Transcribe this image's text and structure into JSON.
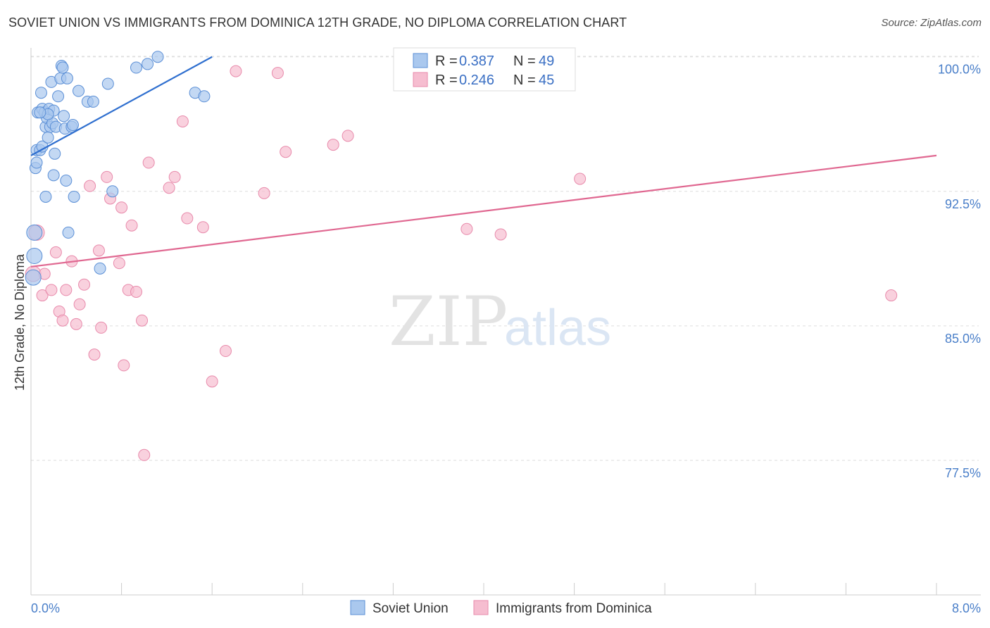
{
  "title": "SOVIET UNION VS IMMIGRANTS FROM DOMINICA 12TH GRADE, NO DIPLOMA CORRELATION CHART",
  "source": "Source: ZipAtlas.com",
  "watermark": {
    "zip": "ZIP",
    "atlas": "atlas"
  },
  "colors": {
    "blue_fill": "#aac8ee",
    "blue_stroke": "#5b8fd6",
    "blue_line": "#2f6fcf",
    "pink_fill": "#f6bdd0",
    "pink_stroke": "#e88aab",
    "pink_line": "#e06891",
    "grid": "#dddddd",
    "tick_text": "#4a7fc9"
  },
  "legend": {
    "rows": [
      {
        "r_label": "R =",
        "r_value": "0.387",
        "n_label": "N =",
        "n_value": "49"
      },
      {
        "r_label": "R =",
        "r_value": "0.246",
        "n_label": "N =",
        "n_value": "45"
      }
    ]
  },
  "chart_data": {
    "type": "scatter",
    "xlabel": "",
    "ylabel": "12th Grade, No Diploma",
    "xlim": [
      0,
      8.0
    ],
    "ylim": [
      70.0,
      100.5
    ],
    "x_tick_labels": [
      "0.0%",
      "8.0%"
    ],
    "y_ticks": [
      77.5,
      85.0,
      92.5,
      100.0
    ],
    "y_tick_labels": [
      "77.5%",
      "85.0%",
      "92.5%",
      "100.0%"
    ],
    "grid": "horizontal dashed",
    "legend_position": "top-center",
    "series": [
      {
        "name": "Soviet Union",
        "color": "blue",
        "trend": {
          "x": [
            0.0,
            1.6
          ],
          "y": [
            94.5,
            100.0
          ]
        },
        "points": [
          [
            0.02,
            87.7
          ],
          [
            0.03,
            88.9
          ],
          [
            0.03,
            90.2
          ],
          [
            0.04,
            93.8
          ],
          [
            0.05,
            94.1
          ],
          [
            0.05,
            94.8
          ],
          [
            0.06,
            96.9
          ],
          [
            0.08,
            94.8
          ],
          [
            0.09,
            98.0
          ],
          [
            0.1,
            97.1
          ],
          [
            0.1,
            95.0
          ],
          [
            0.12,
            96.9
          ],
          [
            0.13,
            96.1
          ],
          [
            0.13,
            92.2
          ],
          [
            0.14,
            96.6
          ],
          [
            0.15,
            95.5
          ],
          [
            0.16,
            97.1
          ],
          [
            0.17,
            96.1
          ],
          [
            0.18,
            98.6
          ],
          [
            0.19,
            96.3
          ],
          [
            0.2,
            93.4
          ],
          [
            0.21,
            94.6
          ],
          [
            0.22,
            96.1
          ],
          [
            0.24,
            97.8
          ],
          [
            0.26,
            98.8
          ],
          [
            0.27,
            99.5
          ],
          [
            0.28,
            99.4
          ],
          [
            0.29,
            96.7
          ],
          [
            0.3,
            96.0
          ],
          [
            0.31,
            93.1
          ],
          [
            0.32,
            98.8
          ],
          [
            0.33,
            90.2
          ],
          [
            0.36,
            96.1
          ],
          [
            0.37,
            96.2
          ],
          [
            0.38,
            92.2
          ],
          [
            0.42,
            98.1
          ],
          [
            0.5,
            97.5
          ],
          [
            0.55,
            97.5
          ],
          [
            0.61,
            88.2
          ],
          [
            0.68,
            98.5
          ],
          [
            0.72,
            92.5
          ],
          [
            0.93,
            99.4
          ],
          [
            1.03,
            99.6
          ],
          [
            1.12,
            100.0
          ],
          [
            1.45,
            98.0
          ],
          [
            1.53,
            97.8
          ],
          [
            0.2,
            97.0
          ],
          [
            0.15,
            96.8
          ],
          [
            0.08,
            96.9
          ]
        ]
      },
      {
        "name": "Immigrants from Dominica",
        "color": "pink",
        "trend": {
          "x": [
            0.0,
            8.0
          ],
          "y": [
            88.3,
            94.5
          ]
        },
        "points": [
          [
            0.02,
            87.9
          ],
          [
            0.05,
            90.2
          ],
          [
            0.1,
            86.7
          ],
          [
            0.12,
            87.9
          ],
          [
            0.18,
            87.0
          ],
          [
            0.22,
            89.1
          ],
          [
            0.25,
            85.8
          ],
          [
            0.28,
            85.3
          ],
          [
            0.31,
            87.0
          ],
          [
            0.36,
            88.6
          ],
          [
            0.4,
            85.1
          ],
          [
            0.43,
            86.2
          ],
          [
            0.47,
            87.3
          ],
          [
            0.52,
            92.8
          ],
          [
            0.56,
            83.4
          ],
          [
            0.6,
            89.2
          ],
          [
            0.62,
            84.9
          ],
          [
            0.67,
            93.3
          ],
          [
            0.7,
            92.1
          ],
          [
            0.78,
            88.5
          ],
          [
            0.8,
            91.6
          ],
          [
            0.82,
            82.8
          ],
          [
            0.86,
            87.0
          ],
          [
            0.89,
            90.6
          ],
          [
            0.93,
            86.9
          ],
          [
            0.98,
            85.3
          ],
          [
            1.0,
            77.8
          ],
          [
            1.04,
            94.1
          ],
          [
            1.22,
            92.7
          ],
          [
            1.27,
            93.3
          ],
          [
            1.34,
            96.4
          ],
          [
            1.38,
            91.0
          ],
          [
            1.52,
            90.5
          ],
          [
            1.6,
            81.9
          ],
          [
            1.72,
            83.6
          ],
          [
            1.81,
            99.2
          ],
          [
            2.06,
            92.4
          ],
          [
            2.18,
            99.1
          ],
          [
            2.25,
            94.7
          ],
          [
            2.67,
            95.1
          ],
          [
            2.8,
            95.6
          ],
          [
            3.85,
            90.4
          ],
          [
            4.15,
            90.1
          ],
          [
            4.85,
            93.2
          ],
          [
            7.6,
            86.7
          ]
        ]
      }
    ]
  }
}
